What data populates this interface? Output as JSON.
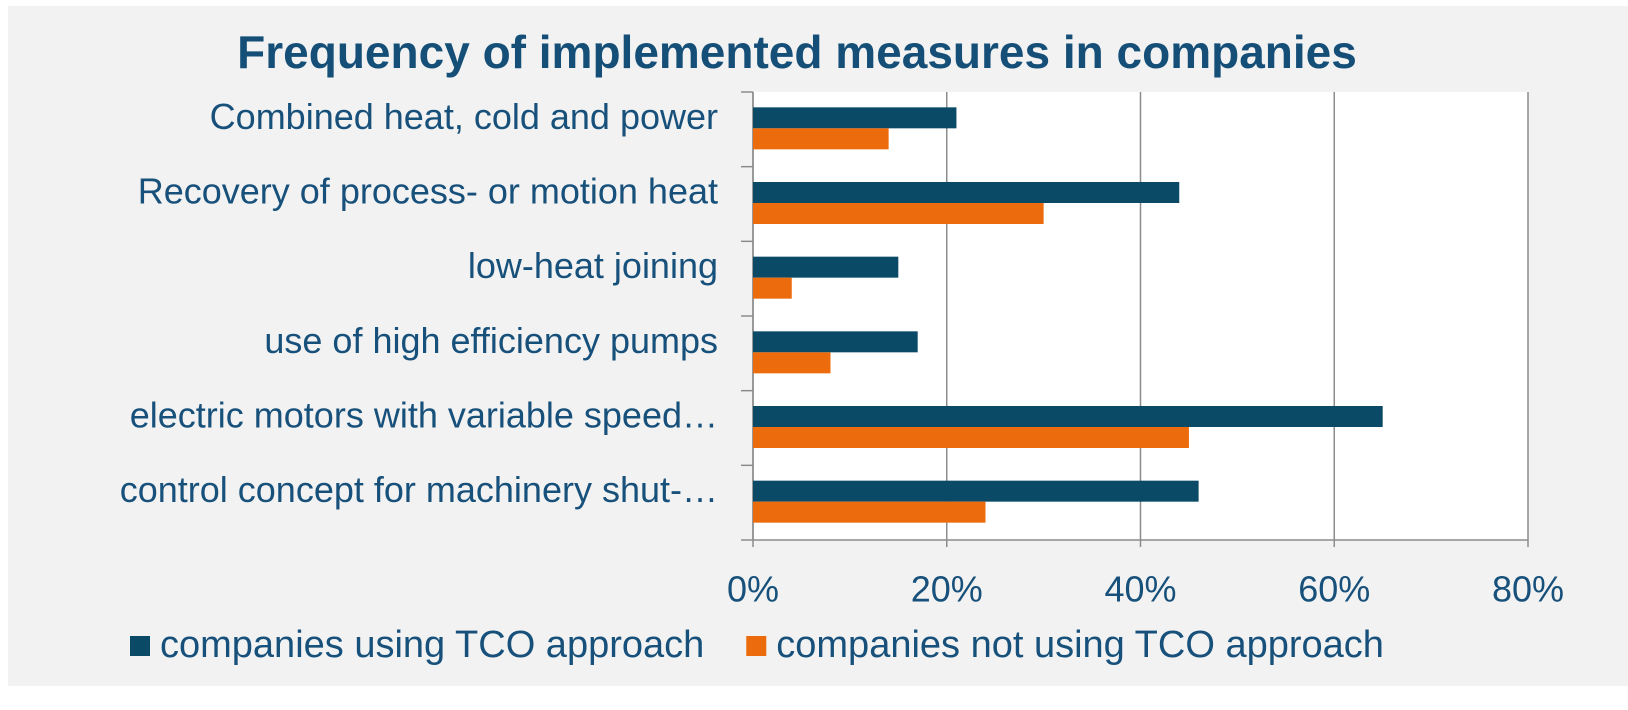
{
  "chart_data": {
    "type": "hbar",
    "title": "Frequency of implemented measures in companies",
    "categories": [
      "Combined heat, cold and power",
      "Recovery of process- or motion heat",
      "low-heat joining",
      "use of high efficiency pumps",
      "electric motors with variable speed…",
      "control concept for machinery shut-…"
    ],
    "series": [
      {
        "name": "companies using TCO approach",
        "color": "#0b4a66",
        "values": [
          21,
          44,
          15,
          17,
          65,
          46
        ]
      },
      {
        "name": "companies not using TCO approach",
        "color": "#ec6c0d",
        "values": [
          14,
          30,
          4,
          8,
          45,
          24
        ]
      }
    ],
    "xlim": [
      0,
      80
    ],
    "xticks": [
      {
        "value": 0,
        "label": "0%"
      },
      {
        "value": 20,
        "label": "20%"
      },
      {
        "value": 40,
        "label": "40%"
      },
      {
        "value": 60,
        "label": "60%"
      },
      {
        "value": 80,
        "label": "80%"
      }
    ],
    "grid": true,
    "legend": "bottom"
  }
}
